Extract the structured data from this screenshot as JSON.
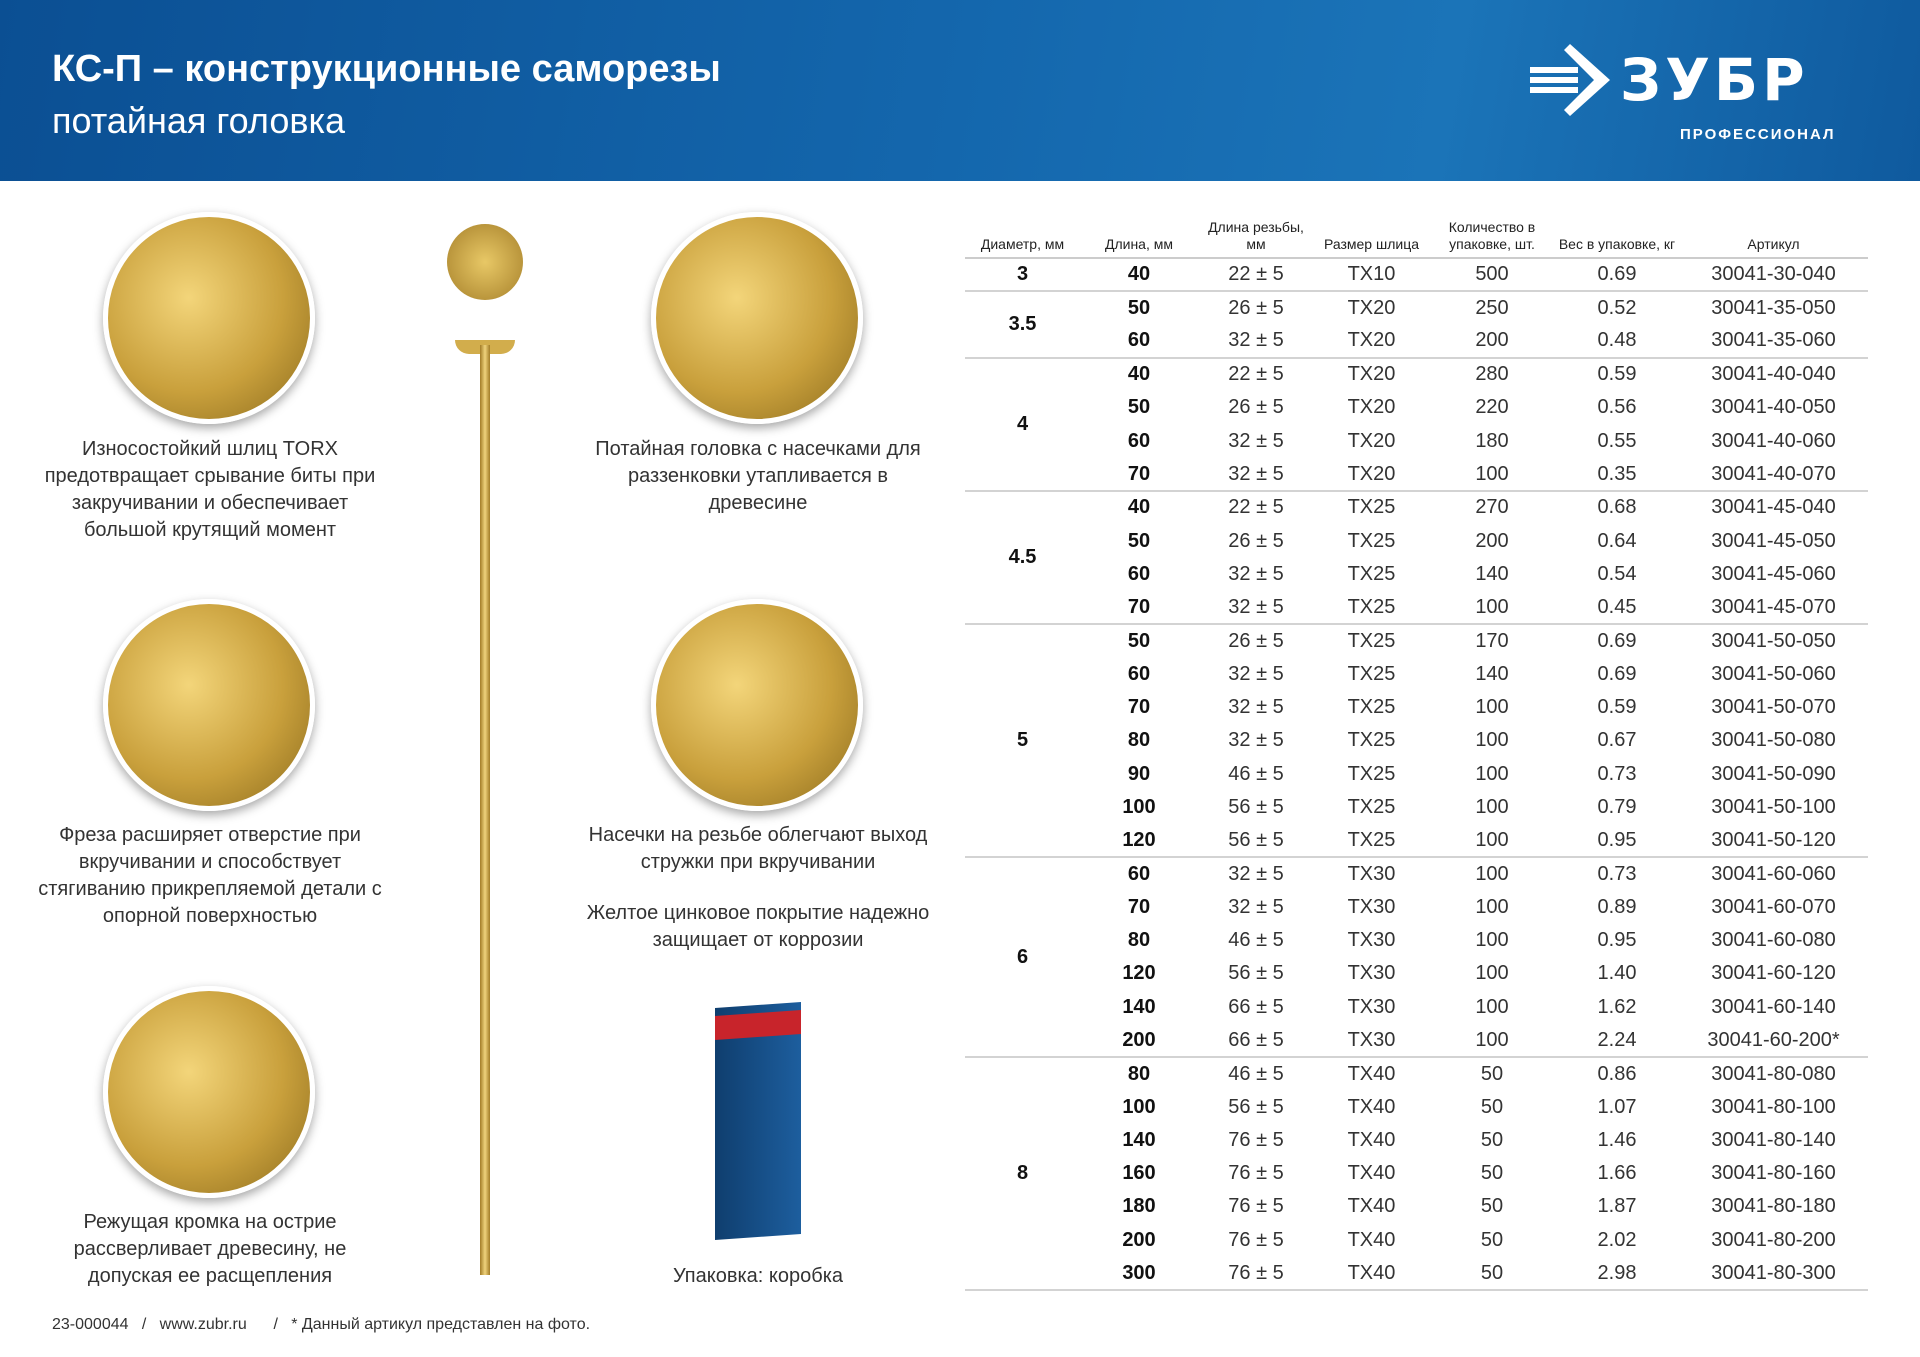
{
  "header": {
    "title": "КС-П – конструкционные саморезы",
    "subtitle": "потайная головка",
    "brand": "ЗУБР",
    "brand_sub": "ПРОФЕССИОНАЛ"
  },
  "features": [
    "Износостойкий шлиц TORX предотвращает срывание биты при закручивании и обеспечивает большой крутящий момент",
    "Потайная головка с насечками для раззенковки утапливается в древесине",
    "Фреза расширяет отверстие при вкручивании и способствует стягиванию прикрепляемой детали с опорной поверхностью",
    "Насечки на резьбе облегчают выход стружки при вкручивании",
    "Желтое цинковое покрытие надежно защищает от коррозии",
    "Режущая кромка на острие рассверливает древесину, не допуская ее расщепления",
    "Упаковка: коробка"
  ],
  "table": {
    "columns": [
      "Диаметр, мм",
      "Длина, мм",
      "Длина резьбы, мм",
      "Размер шлица",
      "Количество в упаковке, шт.",
      "Вес в упаковке, кг",
      "Артикул"
    ],
    "groups": [
      {
        "d": "3",
        "rows": [
          [
            "40",
            "22 ± 5",
            "TX10",
            "500",
            "0.69",
            "30041-30-040"
          ]
        ]
      },
      {
        "d": "3.5",
        "rows": [
          [
            "50",
            "26 ± 5",
            "TX20",
            "250",
            "0.52",
            "30041-35-050"
          ],
          [
            "60",
            "32 ± 5",
            "TX20",
            "200",
            "0.48",
            "30041-35-060"
          ]
        ]
      },
      {
        "d": "4",
        "rows": [
          [
            "40",
            "22 ± 5",
            "TX20",
            "280",
            "0.59",
            "30041-40-040"
          ],
          [
            "50",
            "26 ± 5",
            "TX20",
            "220",
            "0.56",
            "30041-40-050"
          ],
          [
            "60",
            "32 ± 5",
            "TX20",
            "180",
            "0.55",
            "30041-40-060"
          ],
          [
            "70",
            "32 ± 5",
            "TX20",
            "100",
            "0.35",
            "30041-40-070"
          ]
        ]
      },
      {
        "d": "4.5",
        "rows": [
          [
            "40",
            "22 ± 5",
            "TX25",
            "270",
            "0.68",
            "30041-45-040"
          ],
          [
            "50",
            "26 ± 5",
            "TX25",
            "200",
            "0.64",
            "30041-45-050"
          ],
          [
            "60",
            "32 ± 5",
            "TX25",
            "140",
            "0.54",
            "30041-45-060"
          ],
          [
            "70",
            "32 ± 5",
            "TX25",
            "100",
            "0.45",
            "30041-45-070"
          ]
        ]
      },
      {
        "d": "5",
        "rows": [
          [
            "50",
            "26 ± 5",
            "TX25",
            "170",
            "0.69",
            "30041-50-050"
          ],
          [
            "60",
            "32 ± 5",
            "TX25",
            "140",
            "0.69",
            "30041-50-060"
          ],
          [
            "70",
            "32 ± 5",
            "TX25",
            "100",
            "0.59",
            "30041-50-070"
          ],
          [
            "80",
            "32 ± 5",
            "TX25",
            "100",
            "0.67",
            "30041-50-080"
          ],
          [
            "90",
            "46 ± 5",
            "TX25",
            "100",
            "0.73",
            "30041-50-090"
          ],
          [
            "100",
            "56 ± 5",
            "TX25",
            "100",
            "0.79",
            "30041-50-100"
          ],
          [
            "120",
            "56 ± 5",
            "TX25",
            "100",
            "0.95",
            "30041-50-120"
          ]
        ]
      },
      {
        "d": "6",
        "rows": [
          [
            "60",
            "32 ± 5",
            "TX30",
            "100",
            "0.73",
            "30041-60-060"
          ],
          [
            "70",
            "32 ± 5",
            "TX30",
            "100",
            "0.89",
            "30041-60-070"
          ],
          [
            "80",
            "46 ± 5",
            "TX30",
            "100",
            "0.95",
            "30041-60-080"
          ],
          [
            "120",
            "56 ± 5",
            "TX30",
            "100",
            "1.40",
            "30041-60-120"
          ],
          [
            "140",
            "66 ± 5",
            "TX30",
            "100",
            "1.62",
            "30041-60-140"
          ],
          [
            "200",
            "66 ± 5",
            "TX30",
            "100",
            "2.24",
            "30041-60-200*"
          ]
        ]
      },
      {
        "d": "8",
        "rows": [
          [
            "80",
            "46 ± 5",
            "TX40",
            "50",
            "0.86",
            "30041-80-080"
          ],
          [
            "100",
            "56 ± 5",
            "TX40",
            "50",
            "1.07",
            "30041-80-100"
          ],
          [
            "140",
            "76 ± 5",
            "TX40",
            "50",
            "1.46",
            "30041-80-140"
          ],
          [
            "160",
            "76 ± 5",
            "TX40",
            "50",
            "1.66",
            "30041-80-160"
          ],
          [
            "180",
            "76 ± 5",
            "TX40",
            "50",
            "1.87",
            "30041-80-180"
          ],
          [
            "200",
            "76 ± 5",
            "TX40",
            "50",
            "2.02",
            "30041-80-200"
          ],
          [
            "300",
            "76 ± 5",
            "TX40",
            "50",
            "2.98",
            "30041-80-300"
          ]
        ]
      }
    ]
  },
  "footer": {
    "code": "23-000044",
    "url": "www.zubr.ru",
    "note": "* Данный артикул представлен на фото."
  },
  "colors": {
    "header_blue": "#1467ad",
    "gold": "#d2ad4c"
  }
}
